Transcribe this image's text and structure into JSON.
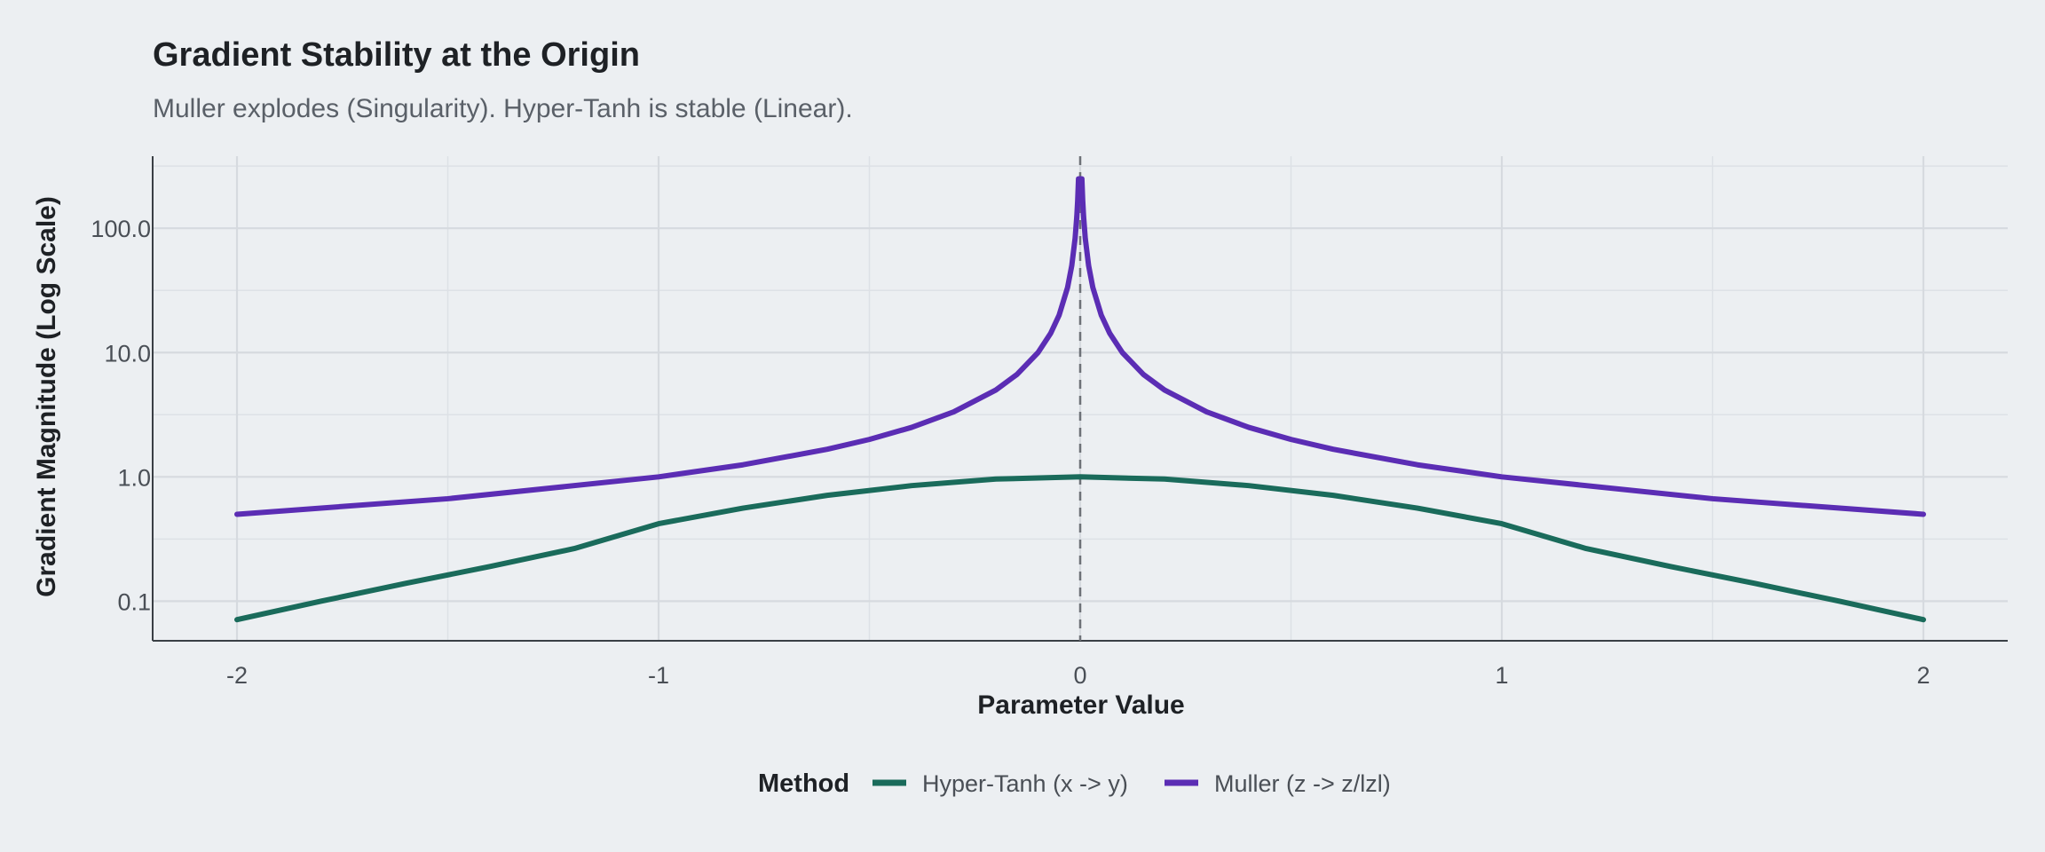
{
  "chart_data": {
    "type": "line",
    "title": "Gradient Stability at the Origin",
    "subtitle": "Muller explodes (Singularity). Hyper-Tanh is stable (Linear).",
    "xlabel": "Parameter Value",
    "ylabel": "Gradient Magnitude (Log Scale)",
    "x_scale": "linear",
    "y_scale": "log10",
    "xlim": [
      -2.2,
      2.2
    ],
    "ylim": [
      0.048,
      380
    ],
    "x_ticks": [
      {
        "value": -2,
        "label": "-2"
      },
      {
        "value": -1,
        "label": "-1"
      },
      {
        "value": 0,
        "label": "0"
      },
      {
        "value": 1,
        "label": "1"
      },
      {
        "value": 2,
        "label": "2"
      }
    ],
    "y_ticks": [
      {
        "value": 0.1,
        "label": "0.1"
      },
      {
        "value": 1,
        "label": "1.0"
      },
      {
        "value": 10,
        "label": "10.0"
      },
      {
        "value": 100,
        "label": "100.0"
      }
    ],
    "grid": true,
    "reference_line": {
      "x": 0,
      "style": "dashed"
    },
    "legend": {
      "title": "Method",
      "position": "bottom"
    },
    "series": [
      {
        "name": "Hyper-Tanh (x -> y)",
        "color": "#1A6B5B",
        "x": [
          -2,
          -1.8,
          -1.6,
          -1.4,
          -1.2,
          -1,
          -0.8,
          -0.6,
          -0.4,
          -0.2,
          0,
          0.2,
          0.4,
          0.6,
          0.8,
          1,
          1.2,
          1.4,
          1.6,
          1.8,
          2
        ],
        "y": [
          0.071,
          0.1,
          0.139,
          0.19,
          0.265,
          0.42,
          0.56,
          0.71,
          0.85,
          0.96,
          1.0,
          0.96,
          0.85,
          0.71,
          0.56,
          0.42,
          0.265,
          0.19,
          0.139,
          0.1,
          0.071
        ]
      },
      {
        "name": "Muller (z -> z/lzl)",
        "color": "#5B2DB4",
        "x": [
          -2,
          -1.5,
          -1,
          -0.8,
          -0.6,
          -0.5,
          -0.4,
          -0.3,
          -0.2,
          -0.15,
          -0.1,
          -0.07,
          -0.05,
          -0.03,
          -0.02,
          -0.012,
          -0.008,
          -0.006,
          -0.004,
          0.004,
          0.006,
          0.008,
          0.012,
          0.02,
          0.03,
          0.05,
          0.07,
          0.1,
          0.15,
          0.2,
          0.3,
          0.4,
          0.5,
          0.6,
          0.8,
          1,
          1.5,
          2
        ],
        "y": [
          0.5,
          0.667,
          1.0,
          1.25,
          1.667,
          2.0,
          2.5,
          3.333,
          5.0,
          6.667,
          10.0,
          14.29,
          20.0,
          33.33,
          50.0,
          83.3,
          125,
          166.7,
          250,
          250,
          166.7,
          125,
          83.3,
          50.0,
          33.33,
          20.0,
          14.29,
          10.0,
          6.667,
          5.0,
          3.333,
          2.5,
          2.0,
          1.667,
          1.25,
          1.0,
          0.667,
          0.5
        ]
      }
    ]
  }
}
